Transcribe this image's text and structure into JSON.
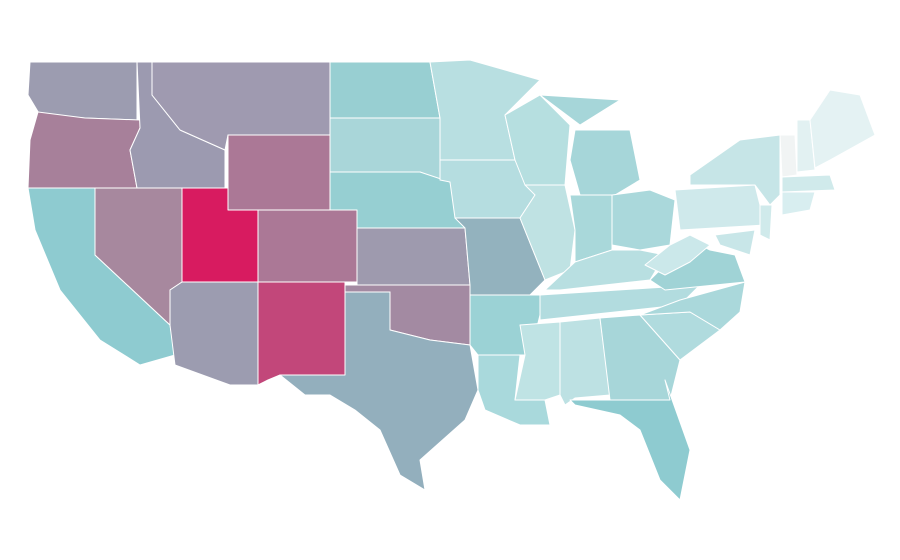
{
  "map": {
    "fills": [
      "#9c9cb0",
      "#a7809a",
      "#9c9ab0",
      "#9f9ab0",
      "#ab7896",
      "#8ecbd0",
      "#a7889e",
      "#d81b60",
      "#ab7896",
      "#9c9cb0",
      "#c2477a",
      "#98cfd2",
      "#a9d6d9",
      "#96cfd2",
      "#9e9aae",
      "#a38aa2",
      "#93afbd",
      "#b8dfe1",
      "#b5dde0",
      "#93b2be",
      "#9bd2d5",
      "#a9d9dc",
      "#b6dfe0",
      "#bfe2e3",
      "#a6d6d9",
      "#a6d6d9",
      "#a9d8da",
      "#aad8db",
      "#b8dfe1",
      "#b2dcdf",
      "#bfe3e4",
      "#bde1e3",
      "#a7d6d9",
      "#8ecbd0",
      "#b0dbde",
      "#aad8db",
      "#a0d3d6",
      "#cbe8ea",
      "#cfe9eb",
      "#c6e5e7",
      "#f1f4f4",
      "#e2f1f2",
      "#e4f2f3",
      "#d0eaeb",
      "#d8eef0",
      "#d0eaeb",
      "#c8e6e8"
    ]
  }
}
